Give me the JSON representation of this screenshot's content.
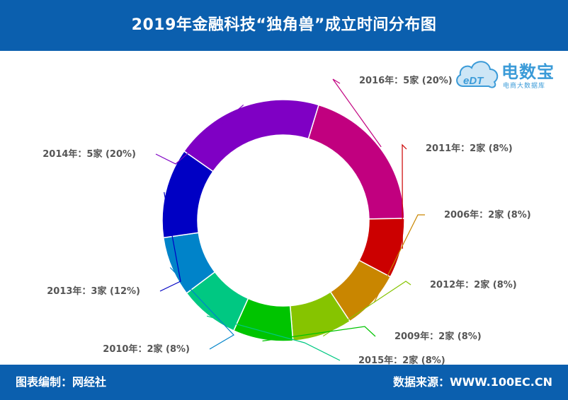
{
  "header": {
    "title": "2019年金融科技“独角兽”成立时间分布图"
  },
  "footer": {
    "left_text": "图表编制：网经社",
    "right_text": "数据来源：WWW.100EC.CN"
  },
  "logo": {
    "mark_text": "eDT",
    "brand_name": "电数宝",
    "brand_tagline": "电商大数据库",
    "color": "#3b9bd8"
  },
  "chart_data": {
    "type": "pie",
    "donut": true,
    "start_angle_deg": -73,
    "slices": [
      {
        "label": "2016年：5家 (20%)",
        "year": "2016年",
        "count": 5,
        "percent": 20,
        "color": "#c1007f"
      },
      {
        "label": "2011年：2家 (8%)",
        "year": "2011年",
        "count": 2,
        "percent": 8,
        "color": "#cc0000"
      },
      {
        "label": "2006年：2家 (8%)",
        "year": "2006年",
        "count": 2,
        "percent": 8,
        "color": "#c98600"
      },
      {
        "label": "2012年：2家 (8%)",
        "year": "2012年",
        "count": 2,
        "percent": 8,
        "color": "#86c400"
      },
      {
        "label": "2009年：2家 (8%)",
        "year": "2009年",
        "count": 2,
        "percent": 8,
        "color": "#00c400"
      },
      {
        "label": "2015年：2家 (8%)",
        "year": "2015年",
        "count": 2,
        "percent": 8,
        "color": "#00c882"
      },
      {
        "label": "2010年：2家 (8%)",
        "year": "2010年",
        "count": 2,
        "percent": 8,
        "color": "#0083c9"
      },
      {
        "label": "2013年：3家 (12%)",
        "year": "2013年",
        "count": 3,
        "percent": 12,
        "color": "#0000c4"
      },
      {
        "label": "2014年：5家 (20%)",
        "year": "2014年",
        "count": 5,
        "percent": 20,
        "color": "#7f00c4"
      }
    ]
  }
}
